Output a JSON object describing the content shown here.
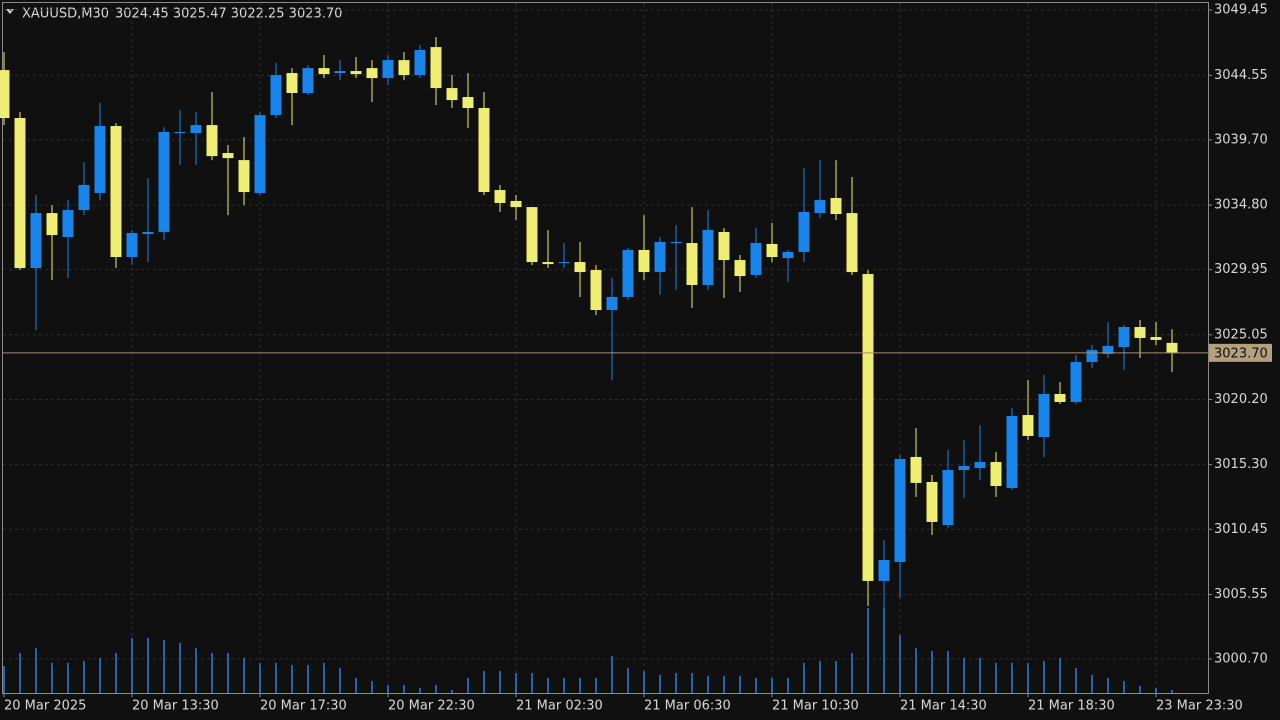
{
  "chart_data": {
    "type": "candlestick",
    "symbol": "XAUUSD,M30",
    "header": "3024.45 3025.47 3022.25 3023.70",
    "last_price_label": "3023.70",
    "open": [
      3044.94,
      3041.34,
      3030.07,
      3034.2,
      3032.4,
      3034.43,
      3035.71,
      3040.74,
      3030.9,
      3032.63,
      3032.78,
      3040.21,
      3040.21,
      3040.81,
      3038.71,
      3038.18,
      3035.71,
      3041.56,
      3044.72,
      3043.22,
      3045.09,
      3044.72,
      3044.87,
      3045.09,
      3044.34,
      3045.69,
      3044.57,
      3046.67,
      3043.59,
      3042.92,
      3042.09,
      3035.93,
      3035.11,
      3034.65,
      3030.52,
      3030.45,
      3030.52,
      3029.92,
      3026.92,
      3027.9,
      3031.43,
      3029.77,
      3031.95,
      3031.95,
      3028.8,
      3032.78,
      3030.67,
      3029.55,
      3031.88,
      3030.82,
      3031.28,
      3034.2,
      3035.33,
      3034.2,
      3029.62,
      3006.57,
      3007.99,
      3015.88,
      3014.0,
      3010.77,
      3014.9,
      3015.05,
      3015.5,
      3013.55,
      3019.03,
      3017.38,
      3020.61,
      3020.01,
      3023.01,
      3023.62,
      3024.14,
      3025.64,
      3024.89,
      3024.45
    ],
    "high": [
      3046.3,
      3041.79,
      3035.56,
      3034.8,
      3035.18,
      3038.03,
      3042.47,
      3040.96,
      3032.93,
      3036.83,
      3040.66,
      3041.94,
      3041.79,
      3043.29,
      3039.31,
      3039.91,
      3041.79,
      3045.47,
      3045.09,
      3045.32,
      3046.07,
      3045.69,
      3045.92,
      3045.69,
      3046.07,
      3046.3,
      3046.82,
      3047.42,
      3044.57,
      3044.72,
      3043.29,
      3036.31,
      3035.56,
      3034.65,
      3032.93,
      3031.95,
      3032.03,
      3030.3,
      3029.32,
      3031.58,
      3034.05,
      3032.4,
      3033.3,
      3034.65,
      3034.43,
      3033.08,
      3031.05,
      3033.08,
      3033.45,
      3031.43,
      3037.58,
      3038.18,
      3038.18,
      3036.91,
      3029.92,
      3009.65,
      3016.03,
      3018.06,
      3014.53,
      3016.41,
      3017.16,
      3018.28,
      3016.26,
      3019.56,
      3021.66,
      3022.04,
      3021.51,
      3023.54,
      3024.29,
      3026.02,
      3025.79,
      3026.17,
      3026.02,
      3025.47
    ],
    "low": [
      3040.81,
      3029.92,
      3025.42,
      3029.17,
      3029.32,
      3034.05,
      3035.18,
      3030.07,
      3030.3,
      3030.52,
      3032.18,
      3037.81,
      3037.81,
      3038.18,
      3034.05,
      3034.8,
      3035.56,
      3041.34,
      3040.81,
      3043.07,
      3044.34,
      3044.19,
      3044.34,
      3042.54,
      3043.82,
      3044.19,
      3044.34,
      3042.31,
      3042.09,
      3040.59,
      3035.56,
      3034.28,
      3033.68,
      3030.3,
      3030.07,
      3030.07,
      3027.9,
      3026.54,
      3021.66,
      3027.67,
      3029.17,
      3028.05,
      3028.42,
      3027.07,
      3028.42,
      3027.82,
      3028.27,
      3029.32,
      3030.52,
      3029.02,
      3030.52,
      3033.83,
      3033.68,
      3029.55,
      3004.69,
      3000.26,
      3005.29,
      3012.88,
      3010.02,
      3010.55,
      3012.8,
      3014.15,
      3012.88,
      3013.4,
      3017.16,
      3015.88,
      3019.86,
      3019.86,
      3022.56,
      3023.31,
      3022.41,
      3023.31,
      3024.29,
      3022.25
    ],
    "close": [
      3041.34,
      3030.07,
      3034.2,
      3032.55,
      3034.43,
      3036.31,
      3040.74,
      3030.9,
      3032.7,
      3032.78,
      3040.29,
      3040.29,
      3040.81,
      3038.48,
      3038.33,
      3035.78,
      3041.56,
      3044.57,
      3043.22,
      3045.09,
      3044.64,
      3044.87,
      3044.64,
      3044.34,
      3045.69,
      3044.57,
      3046.45,
      3043.59,
      3042.69,
      3042.09,
      3035.78,
      3034.96,
      3034.65,
      3030.52,
      3030.37,
      3030.52,
      3029.77,
      3026.92,
      3027.9,
      3031.43,
      3029.77,
      3032.03,
      3032.03,
      3028.8,
      3032.93,
      3030.67,
      3029.47,
      3031.95,
      3030.9,
      3031.28,
      3034.28,
      3035.18,
      3034.13,
      3029.77,
      3006.57,
      3008.14,
      3015.73,
      3013.93,
      3011.0,
      3014.9,
      3015.2,
      3015.5,
      3013.7,
      3018.96,
      3017.46,
      3020.61,
      3020.01,
      3023.01,
      3023.92,
      3024.22,
      3025.64,
      3024.82,
      3024.67,
      3023.7
    ],
    "volume": [
      27,
      40,
      45,
      30,
      30,
      32,
      35,
      40,
      55,
      55,
      53,
      50,
      45,
      40,
      40,
      35,
      30,
      30,
      28,
      28,
      30,
      25,
      15,
      12,
      8,
      8,
      5,
      8,
      3,
      15,
      22,
      22,
      20,
      20,
      15,
      15,
      15,
      15,
      37,
      25,
      22,
      18,
      20,
      20,
      17,
      17,
      17,
      15,
      15,
      15,
      30,
      32,
      32,
      40,
      85,
      85,
      58,
      45,
      42,
      42,
      35,
      35,
      30,
      30,
      30,
      32,
      35,
      25,
      18,
      15,
      12,
      7,
      5,
      3
    ],
    "volume_lim": [
      0,
      100
    ],
    "up_color": "#1b84e8",
    "down_color": "#eeee77",
    "volume_color": "#2a7fdc",
    "ylim": [
      2998.15,
      3049.98
    ],
    "yticks": [
      3049.45,
      3044.55,
      {
        "value": 3039.7,
        "label": "3039.70"
      },
      {
        "value": 3034.8,
        "label": "3034.80"
      },
      3029.95,
      3025.05,
      {
        "value": 3020.2,
        "label": "3020.20"
      },
      {
        "value": 3015.3,
        "label": "3015.30"
      },
      3010.45,
      3005.55,
      {
        "value": 3000.7,
        "label": "3000.70"
      }
    ],
    "xticks": [
      {
        "value": 0,
        "label": "20 Mar 2025"
      },
      {
        "value": 8,
        "label": "20 Mar 13:30"
      },
      {
        "value": 16,
        "label": "20 Mar 17:30"
      },
      {
        "value": 24,
        "label": "20 Mar 22:30"
      },
      {
        "value": 32,
        "label": "21 Mar 02:30"
      },
      {
        "value": 40,
        "label": "21 Mar 06:30"
      },
      {
        "value": 48,
        "label": "21 Mar 10:30"
      },
      {
        "value": 56,
        "label": "21 Mar 14:30"
      },
      {
        "value": 64,
        "label": "21 Mar 18:30"
      },
      {
        "value": 72,
        "label": "23 Mar 23:30"
      }
    ],
    "grid": true
  }
}
